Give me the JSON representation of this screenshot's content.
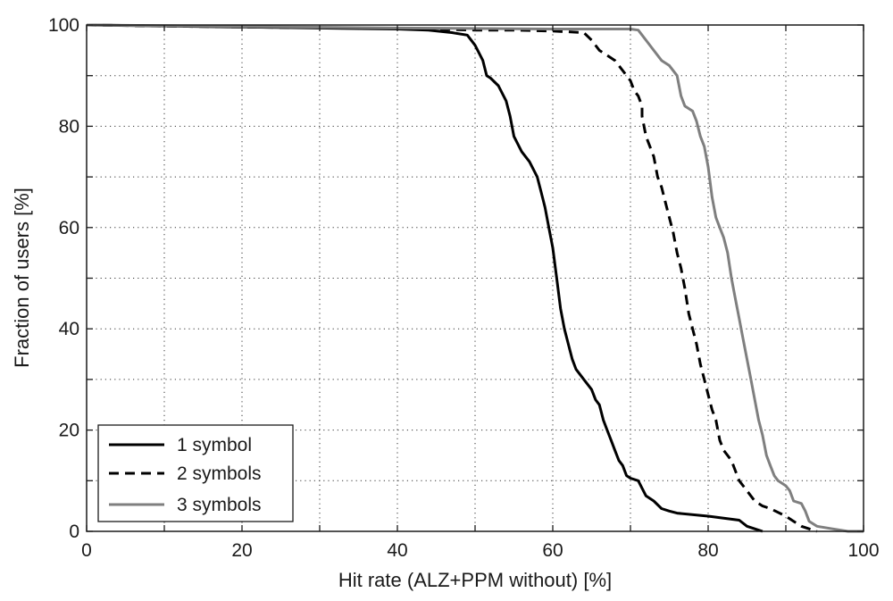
{
  "chart_data": {
    "type": "line",
    "title": "",
    "xlabel": "Hit rate (ALZ+PPM without) [%]",
    "ylabel": "Fraction of users [%]",
    "xlim": [
      0,
      100
    ],
    "ylim": [
      0,
      100
    ],
    "xticks": [
      "0",
      "20",
      "40",
      "60",
      "80",
      "100"
    ],
    "yticks": [
      "0",
      "20",
      "40",
      "60",
      "80",
      "100"
    ],
    "grid": true,
    "legend_position": "bottom-left",
    "series": [
      {
        "name": "1 symbol",
        "color": "#000000",
        "dash": "solid",
        "points": [
          [
            0,
            100
          ],
          [
            10,
            99.8
          ],
          [
            20,
            99.6
          ],
          [
            30,
            99.4
          ],
          [
            40,
            99.2
          ],
          [
            44,
            99
          ],
          [
            47,
            98.5
          ],
          [
            49,
            98
          ],
          [
            50,
            96
          ],
          [
            51,
            93
          ],
          [
            51.5,
            90
          ],
          [
            52,
            89.5
          ],
          [
            53,
            88
          ],
          [
            54,
            85
          ],
          [
            54.5,
            82
          ],
          [
            55,
            78
          ],
          [
            56,
            75
          ],
          [
            57,
            73
          ],
          [
            58,
            70
          ],
          [
            58.5,
            67
          ],
          [
            59,
            64
          ],
          [
            59.5,
            60
          ],
          [
            60,
            56
          ],
          [
            60.5,
            50
          ],
          [
            61,
            44
          ],
          [
            61.5,
            40
          ],
          [
            62,
            37
          ],
          [
            62.5,
            34
          ],
          [
            63,
            32
          ],
          [
            64,
            30
          ],
          [
            65,
            28
          ],
          [
            65.5,
            26
          ],
          [
            66,
            25
          ],
          [
            66.5,
            22
          ],
          [
            67,
            20
          ],
          [
            67.5,
            18
          ],
          [
            68,
            16
          ],
          [
            68.5,
            14
          ],
          [
            69,
            13
          ],
          [
            69.5,
            11
          ],
          [
            70,
            10.5
          ],
          [
            71,
            10
          ],
          [
            72,
            7
          ],
          [
            73,
            6
          ],
          [
            74,
            4.5
          ],
          [
            75,
            4
          ],
          [
            76,
            3.6
          ],
          [
            80,
            3
          ],
          [
            84,
            2.2
          ],
          [
            85,
            1
          ],
          [
            86,
            0.5
          ],
          [
            87,
            0
          ]
        ]
      },
      {
        "name": "2 symbols",
        "color": "#000000",
        "dash": "dashed",
        "points": [
          [
            0,
            100
          ],
          [
            20,
            99.6
          ],
          [
            40,
            99.3
          ],
          [
            50,
            99
          ],
          [
            55,
            99
          ],
          [
            60,
            98.8
          ],
          [
            64,
            98.5
          ],
          [
            65,
            97
          ],
          [
            66,
            95
          ],
          [
            67,
            94
          ],
          [
            68,
            93
          ],
          [
            69,
            91
          ],
          [
            70,
            89
          ],
          [
            70.5,
            87
          ],
          [
            71,
            86
          ],
          [
            71.5,
            84
          ],
          [
            71.5,
            82
          ],
          [
            72,
            78
          ],
          [
            72.5,
            76
          ],
          [
            73,
            74
          ],
          [
            73.5,
            70
          ],
          [
            74,
            68
          ],
          [
            74.5,
            65
          ],
          [
            75,
            62
          ],
          [
            75.5,
            59
          ],
          [
            76,
            55
          ],
          [
            76.5,
            52
          ],
          [
            77,
            48
          ],
          [
            77.5,
            43
          ],
          [
            78,
            40
          ],
          [
            78.5,
            37
          ],
          [
            79,
            33
          ],
          [
            79.5,
            30
          ],
          [
            80,
            27
          ],
          [
            80.5,
            24
          ],
          [
            81,
            22
          ],
          [
            81.5,
            18
          ],
          [
            82,
            16
          ],
          [
            83,
            14
          ],
          [
            83.5,
            12
          ],
          [
            84,
            10
          ],
          [
            85,
            8
          ],
          [
            86,
            6
          ],
          [
            87,
            5
          ],
          [
            88,
            4.5
          ],
          [
            90,
            3
          ],
          [
            91,
            2
          ],
          [
            92,
            1
          ],
          [
            93,
            0.5
          ],
          [
            94,
            0
          ]
        ]
      },
      {
        "name": "3 symbols",
        "color": "#7f7f7f",
        "dash": "solid",
        "points": [
          [
            0,
            100
          ],
          [
            20,
            99.7
          ],
          [
            40,
            99.4
          ],
          [
            60,
            99.2
          ],
          [
            70,
            99.2
          ],
          [
            71,
            99
          ],
          [
            72,
            97
          ],
          [
            73,
            95
          ],
          [
            74,
            93
          ],
          [
            75,
            92
          ],
          [
            76,
            90
          ],
          [
            76.5,
            86
          ],
          [
            77,
            84
          ],
          [
            78,
            83
          ],
          [
            78.5,
            81
          ],
          [
            79,
            78
          ],
          [
            79.5,
            76
          ],
          [
            80,
            72
          ],
          [
            80.5,
            66
          ],
          [
            81,
            62
          ],
          [
            81.5,
            60
          ],
          [
            82,
            58
          ],
          [
            82.5,
            55
          ],
          [
            83,
            50
          ],
          [
            83.5,
            46
          ],
          [
            84,
            42
          ],
          [
            84.5,
            38
          ],
          [
            85,
            34
          ],
          [
            85.5,
            30
          ],
          [
            86,
            26
          ],
          [
            86.5,
            22
          ],
          [
            87,
            19
          ],
          [
            87.5,
            15
          ],
          [
            88,
            13
          ],
          [
            88.5,
            11
          ],
          [
            89,
            10
          ],
          [
            90,
            9
          ],
          [
            90.5,
            8
          ],
          [
            91,
            6
          ],
          [
            92,
            5.5
          ],
          [
            92.5,
            4
          ],
          [
            93,
            2
          ],
          [
            94,
            1
          ],
          [
            96,
            0.5
          ],
          [
            98,
            0
          ],
          [
            100,
            0
          ]
        ]
      }
    ]
  }
}
